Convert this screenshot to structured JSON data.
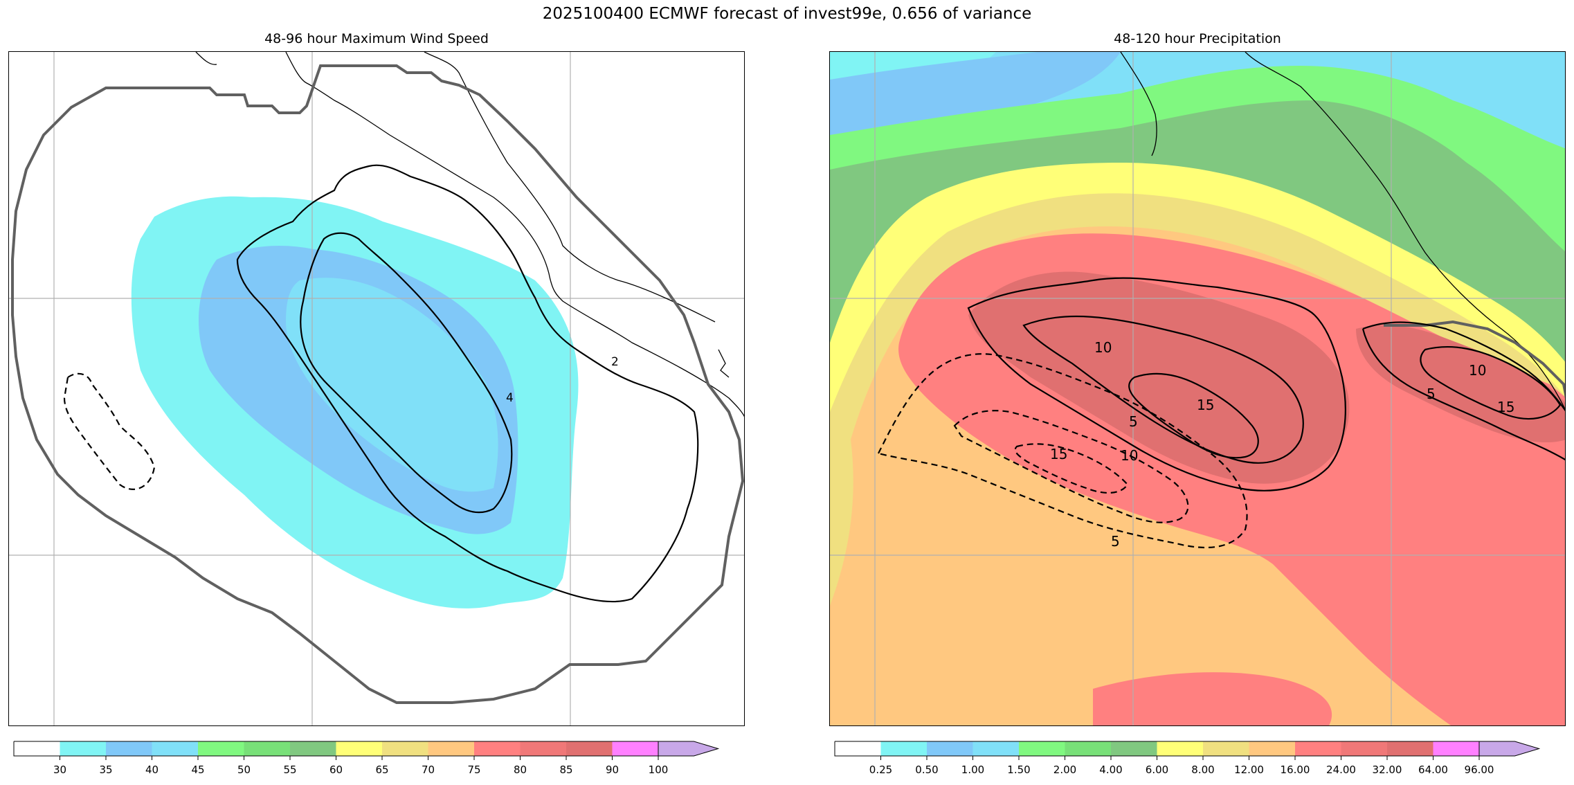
{
  "figure": {
    "title": "2025100400 ECMWF forecast of invest99e, 0.656 of variance"
  },
  "panels": {
    "wind": {
      "title": "48-96 hour Maximum Wind Speed",
      "contour_labels": [
        "2",
        "4"
      ],
      "colorbar": {
        "colors": [
          "#ffffff",
          "#80f4f4",
          "#80c8f8",
          "#80e0f8",
          "#80f880",
          "#78e078",
          "#80c880",
          "#ffff78",
          "#f0e080",
          "#ffc880",
          "#ff8080",
          "#f07878",
          "#e07070",
          "#ff80ff",
          "#c8a8e8"
        ],
        "tick_labels": [
          "30",
          "35",
          "40",
          "45",
          "50",
          "55",
          "60",
          "65",
          "70",
          "75",
          "80",
          "85",
          "90",
          "100"
        ]
      }
    },
    "precip": {
      "title": "48-120 hour Precipitation",
      "contour_labels": [
        "10",
        "15",
        "5",
        "10",
        "15",
        "5",
        "10",
        "5",
        "15"
      ],
      "colorbar": {
        "colors": [
          "#ffffff",
          "#80f4f4",
          "#80c8f8",
          "#80e0f8",
          "#80f880",
          "#78e078",
          "#80c880",
          "#ffff78",
          "#f0e080",
          "#ffc880",
          "#ff8080",
          "#f07878",
          "#e07070",
          "#ff80ff",
          "#c8a8e8"
        ],
        "tick_labels": [
          "0.25",
          "0.50",
          "1.00",
          "1.50",
          "2.00",
          "4.00",
          "6.00",
          "8.00",
          "12.00",
          "16.00",
          "24.00",
          "32.00",
          "64.00",
          "96.00"
        ]
      }
    }
  }
}
